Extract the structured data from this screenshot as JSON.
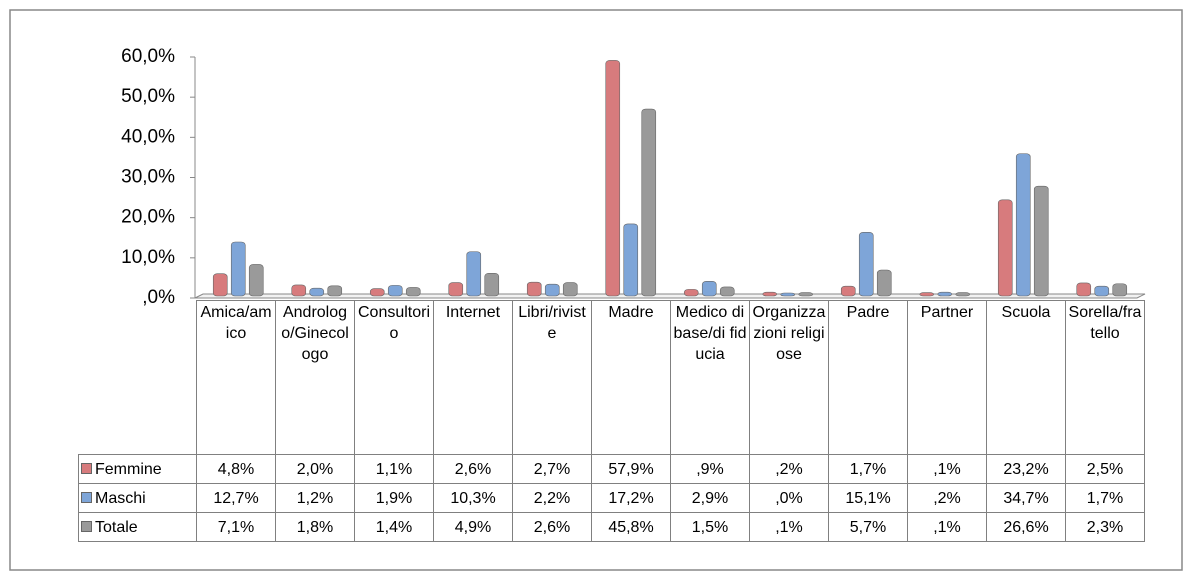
{
  "chart_data": {
    "type": "bar",
    "categories": [
      "Amica/amico",
      "Andrologo/Ginecologo",
      "Consultorio",
      "Internet",
      "Libri/riviste",
      "Madre",
      "Medico di base/di fiducia",
      "Organizzazioni religiose",
      "Padre",
      "Partner",
      "Scuola",
      "Sorella/fratello"
    ],
    "series": [
      {
        "name": "Femmine",
        "color": "#d77b7d",
        "values": [
          4.8,
          2.0,
          1.1,
          2.6,
          2.7,
          57.9,
          0.9,
          0.2,
          1.7,
          0.1,
          23.2,
          2.5
        ],
        "value_labels": [
          "4,8%",
          "2,0%",
          "1,1%",
          "2,6%",
          "2,7%",
          "57,9%",
          ",9%",
          ",2%",
          "1,7%",
          ",1%",
          "23,2%",
          "2,5%"
        ]
      },
      {
        "name": "Maschi",
        "color": "#7ea5d8",
        "values": [
          12.7,
          1.2,
          1.9,
          10.3,
          2.2,
          17.2,
          2.9,
          0.0,
          15.1,
          0.2,
          34.7,
          1.7
        ],
        "value_labels": [
          "12,7%",
          "1,2%",
          "1,9%",
          "10,3%",
          "2,2%",
          "17,2%",
          "2,9%",
          ",0%",
          "15,1%",
          ",2%",
          "34,7%",
          "1,7%"
        ]
      },
      {
        "name": "Totale",
        "color": "#9a9a9a",
        "values": [
          7.1,
          1.8,
          1.4,
          4.9,
          2.6,
          45.8,
          1.5,
          0.1,
          5.7,
          0.1,
          26.6,
          2.3
        ],
        "value_labels": [
          "7,1%",
          "1,8%",
          "1,4%",
          "4,9%",
          "2,6%",
          "45,8%",
          "1,5%",
          ",1%",
          "5,7%",
          ",1%",
          "26,6%",
          "2,3%"
        ]
      }
    ],
    "ylim": [
      0,
      60
    ],
    "yticks": [
      {
        "value": 0,
        "label": ",0%"
      },
      {
        "value": 10,
        "label": "10,0%"
      },
      {
        "value": 20,
        "label": "20,0%"
      },
      {
        "value": 30,
        "label": "30,0%"
      },
      {
        "value": 40,
        "label": "40,0%"
      },
      {
        "value": 50,
        "label": "50,0%"
      },
      {
        "value": 60,
        "label": "60,0%"
      }
    ]
  }
}
